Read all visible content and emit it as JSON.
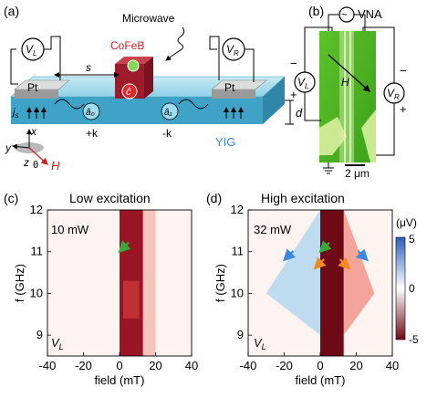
{
  "panels": {
    "a": {
      "label": "(a)",
      "microwave": "Microwave",
      "cofeb": "CoFeB",
      "c_mode": "ĉ",
      "a0_mode": "â₀",
      "a1_mode": "â₁",
      "pt_left": "Pt",
      "pt_right": "Pt",
      "vl_sym": "V",
      "vl_sub": "L",
      "vr_sym": "V",
      "vr_sub": "R",
      "s_label": "s",
      "js_label": "j",
      "js_sub": "s",
      "plus_k": "+k",
      "minus_k": "-k",
      "yig": "YIG",
      "d_label": "d",
      "axis_x": "x",
      "axis_y": "y",
      "axis_z": "z",
      "theta": "θ",
      "h_label": "H"
    },
    "b": {
      "label": "(b)",
      "vna": "VNA",
      "h_label": "H",
      "vl_sym": "V",
      "vl_sub": "L",
      "vr_sym": "V",
      "vr_sub": "R",
      "minus_left": "−",
      "plus_left": "+",
      "minus_right": "−",
      "plus_right": "+",
      "scale": "2 μm"
    },
    "c": {
      "label": "(c)",
      "title": "Low excitation",
      "power": "10 mW",
      "corner": "V",
      "corner_sub": "L"
    },
    "d": {
      "label": "(d)",
      "title": "High excitation",
      "power": "32 mW",
      "corner": "V",
      "corner_sub": "L"
    },
    "colorbar": {
      "unit": "(μV)",
      "ticks": [
        "5",
        "0",
        "-5"
      ],
      "top_color": "#2d5fb8",
      "mid_color": "#ffffff",
      "bottom_color": "#6e0a16"
    }
  },
  "chart_data": [
    {
      "type": "heatmap",
      "title": "Low excitation",
      "xlabel": "field (mT)",
      "ylabel": "f (GHz)",
      "xlim": [
        -40,
        40
      ],
      "ylim": [
        8.5,
        12
      ],
      "xticks": [
        "-40",
        "-20",
        "0",
        "20",
        "40"
      ],
      "yticks": [
        "9",
        "10",
        "11",
        "12"
      ],
      "annotation": "10 mW",
      "features": {
        "strong_band_field_range": [
          0,
          13
        ],
        "faint_band_field_range": [
          13,
          20
        ],
        "arrows": [
          {
            "color": "#3aa83a",
            "points_to": [
              0,
              11
            ]
          }
        ]
      }
    },
    {
      "type": "heatmap",
      "title": "High excitation",
      "xlabel": "field (mT)",
      "ylabel": "f (GHz)",
      "xlim": [
        -40,
        40
      ],
      "ylim": [
        8.5,
        12
      ],
      "xticks": [
        "-40",
        "-20",
        "0",
        "20",
        "40"
      ],
      "yticks": [
        "9",
        "10",
        "11",
        "12"
      ],
      "annotation": "32 mW",
      "colorbar": {
        "label": "(μV)",
        "range": [
          -5,
          5
        ],
        "ticks": [
          5,
          0,
          -5
        ]
      },
      "features": {
        "negative_branch_vertex": [
          0,
          12
        ],
        "negative_branch_end": [
          -30,
          10
        ],
        "positive_branch_vertex": [
          13,
          12
        ],
        "positive_branch_end": [
          30,
          10
        ],
        "arrows": [
          {
            "color": "#3aa83a",
            "points_to": [
              0,
              11
            ]
          },
          {
            "color": "#3b87e0",
            "points_to": [
              -20,
              10.8
            ]
          },
          {
            "color": "#f08a24",
            "points_to": [
              -3,
              10.6
            ]
          },
          {
            "color": "#f08a24",
            "points_to": [
              16,
              10.6
            ]
          },
          {
            "color": "#3b87e0",
            "points_to": [
              26,
              10.8
            ]
          }
        ]
      }
    }
  ]
}
